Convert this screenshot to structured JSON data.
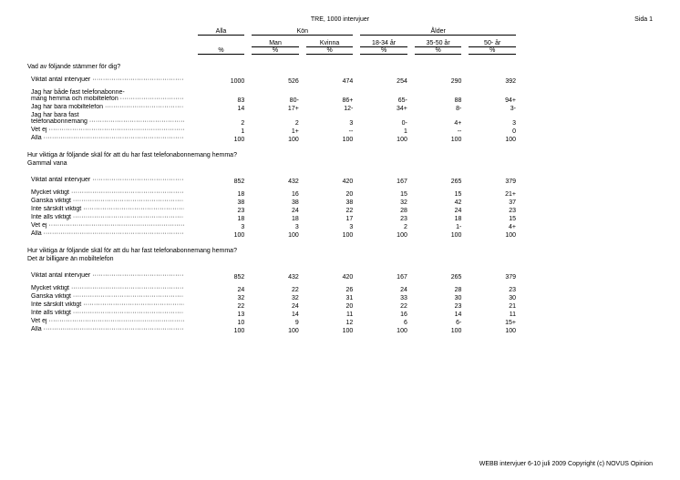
{
  "page_label": "Sida 1",
  "title": "TRE, 1000 intervjuer",
  "header": {
    "alla": "Alla",
    "kon": "Kön",
    "alder": "Ålder",
    "man": "Man",
    "kvinna": "Kvinna",
    "a18": "18-34 år",
    "a35": "35-50 år",
    "a50": "50- år",
    "pct": "%"
  },
  "q1": {
    "question": "Vad av följande stämmer för dig?",
    "base_label": "Viktat antal intervjuer",
    "base": [
      "1000",
      "526",
      "474",
      "254",
      "290",
      "392"
    ],
    "rows": [
      {
        "label": "Jag har både fast telefonabonne-",
        "nobr2": "mang hemma och mobiltelefon",
        "v": [
          "83",
          "80-",
          "86+",
          "65-",
          "88",
          "94+"
        ],
        "bold": [
          false,
          true,
          true,
          true,
          false,
          true
        ]
      },
      {
        "label": "Jag har bara mobiltelefon",
        "v": [
          "14",
          "17+",
          "12-",
          "34+",
          "8-",
          "3-"
        ],
        "bold": [
          false,
          true,
          true,
          true,
          true,
          true
        ]
      },
      {
        "label": "Jag har bara fast",
        "nobr2": "telefonabonnemang",
        "v": [
          "2",
          "2",
          "3",
          "0-",
          "4+",
          "3"
        ],
        "bold": [
          false,
          false,
          false,
          true,
          true,
          false
        ]
      },
      {
        "label": "Vet ej",
        "v": [
          "1",
          "1+",
          "--",
          "1",
          "--",
          "0"
        ],
        "bold": [
          false,
          true,
          false,
          false,
          false,
          false
        ]
      },
      {
        "label": "Alla",
        "v": [
          "100",
          "100",
          "100",
          "100",
          "100",
          "100"
        ],
        "bold": [
          false,
          false,
          false,
          false,
          false,
          false
        ]
      }
    ]
  },
  "q2": {
    "question": "Hur viktiga är följande skäl för att du har fast telefonabonnemang hemma?",
    "sub": "Gammal vana",
    "base_label": "Viktat antal intervjuer",
    "base": [
      "852",
      "432",
      "420",
      "167",
      "265",
      "379"
    ],
    "rows": [
      {
        "label": "Mycket viktigt",
        "v": [
          "18",
          "16",
          "20",
          "15",
          "15",
          "21+"
        ],
        "bold": [
          false,
          false,
          false,
          false,
          false,
          true
        ]
      },
      {
        "label": "Ganska viktigt",
        "v": [
          "38",
          "38",
          "38",
          "32",
          "42",
          "37"
        ],
        "bold": [
          false,
          false,
          false,
          false,
          false,
          false
        ]
      },
      {
        "label": "Inte särskilt viktigt",
        "v": [
          "23",
          "24",
          "22",
          "28",
          "24",
          "23"
        ],
        "bold": [
          false,
          false,
          false,
          false,
          false,
          false
        ]
      },
      {
        "label": "Inte alls viktigt",
        "v": [
          "18",
          "18",
          "17",
          "23",
          "18",
          "15"
        ],
        "bold": [
          false,
          false,
          false,
          false,
          false,
          false
        ]
      },
      {
        "label": "Vet ej",
        "v": [
          "3",
          "3",
          "3",
          "2",
          "1-",
          "4+"
        ],
        "bold": [
          false,
          false,
          false,
          false,
          true,
          true
        ]
      },
      {
        "label": "Alla",
        "v": [
          "100",
          "100",
          "100",
          "100",
          "100",
          "100"
        ],
        "bold": [
          false,
          false,
          false,
          false,
          false,
          false
        ]
      }
    ]
  },
  "q3": {
    "question": "Hur viktiga är följande skäl för att du har fast telefonabonnemang hemma?",
    "sub": "Det är billigare än mobiltelefon",
    "base_label": "Viktat antal intervjuer",
    "base": [
      "852",
      "432",
      "420",
      "167",
      "265",
      "379"
    ],
    "rows": [
      {
        "label": "Mycket viktigt",
        "v": [
          "24",
          "22",
          "26",
          "24",
          "28",
          "23"
        ],
        "bold": [
          false,
          false,
          false,
          false,
          false,
          false
        ]
      },
      {
        "label": "Ganska viktigt",
        "v": [
          "32",
          "32",
          "31",
          "33",
          "30",
          "30"
        ],
        "bold": [
          false,
          false,
          false,
          false,
          false,
          false
        ]
      },
      {
        "label": "Inte särskilt viktigt",
        "v": [
          "22",
          "24",
          "20",
          "22",
          "23",
          "21"
        ],
        "bold": [
          false,
          false,
          false,
          false,
          false,
          false
        ]
      },
      {
        "label": "Inte alls viktigt",
        "v": [
          "13",
          "14",
          "11",
          "16",
          "14",
          "11"
        ],
        "bold": [
          false,
          false,
          false,
          false,
          false,
          false
        ]
      },
      {
        "label": "Vet ej",
        "v": [
          "10",
          "9",
          "12",
          "6",
          "6-",
          "15+"
        ],
        "bold": [
          false,
          false,
          false,
          false,
          true,
          true
        ]
      },
      {
        "label": "Alla",
        "v": [
          "100",
          "100",
          "100",
          "100",
          "100",
          "100"
        ],
        "bold": [
          false,
          false,
          false,
          false,
          false,
          false
        ]
      }
    ]
  },
  "footer": "WEBB intervjuer 6-10 juli 2009 Copyright (c) NOVUS Opinion"
}
